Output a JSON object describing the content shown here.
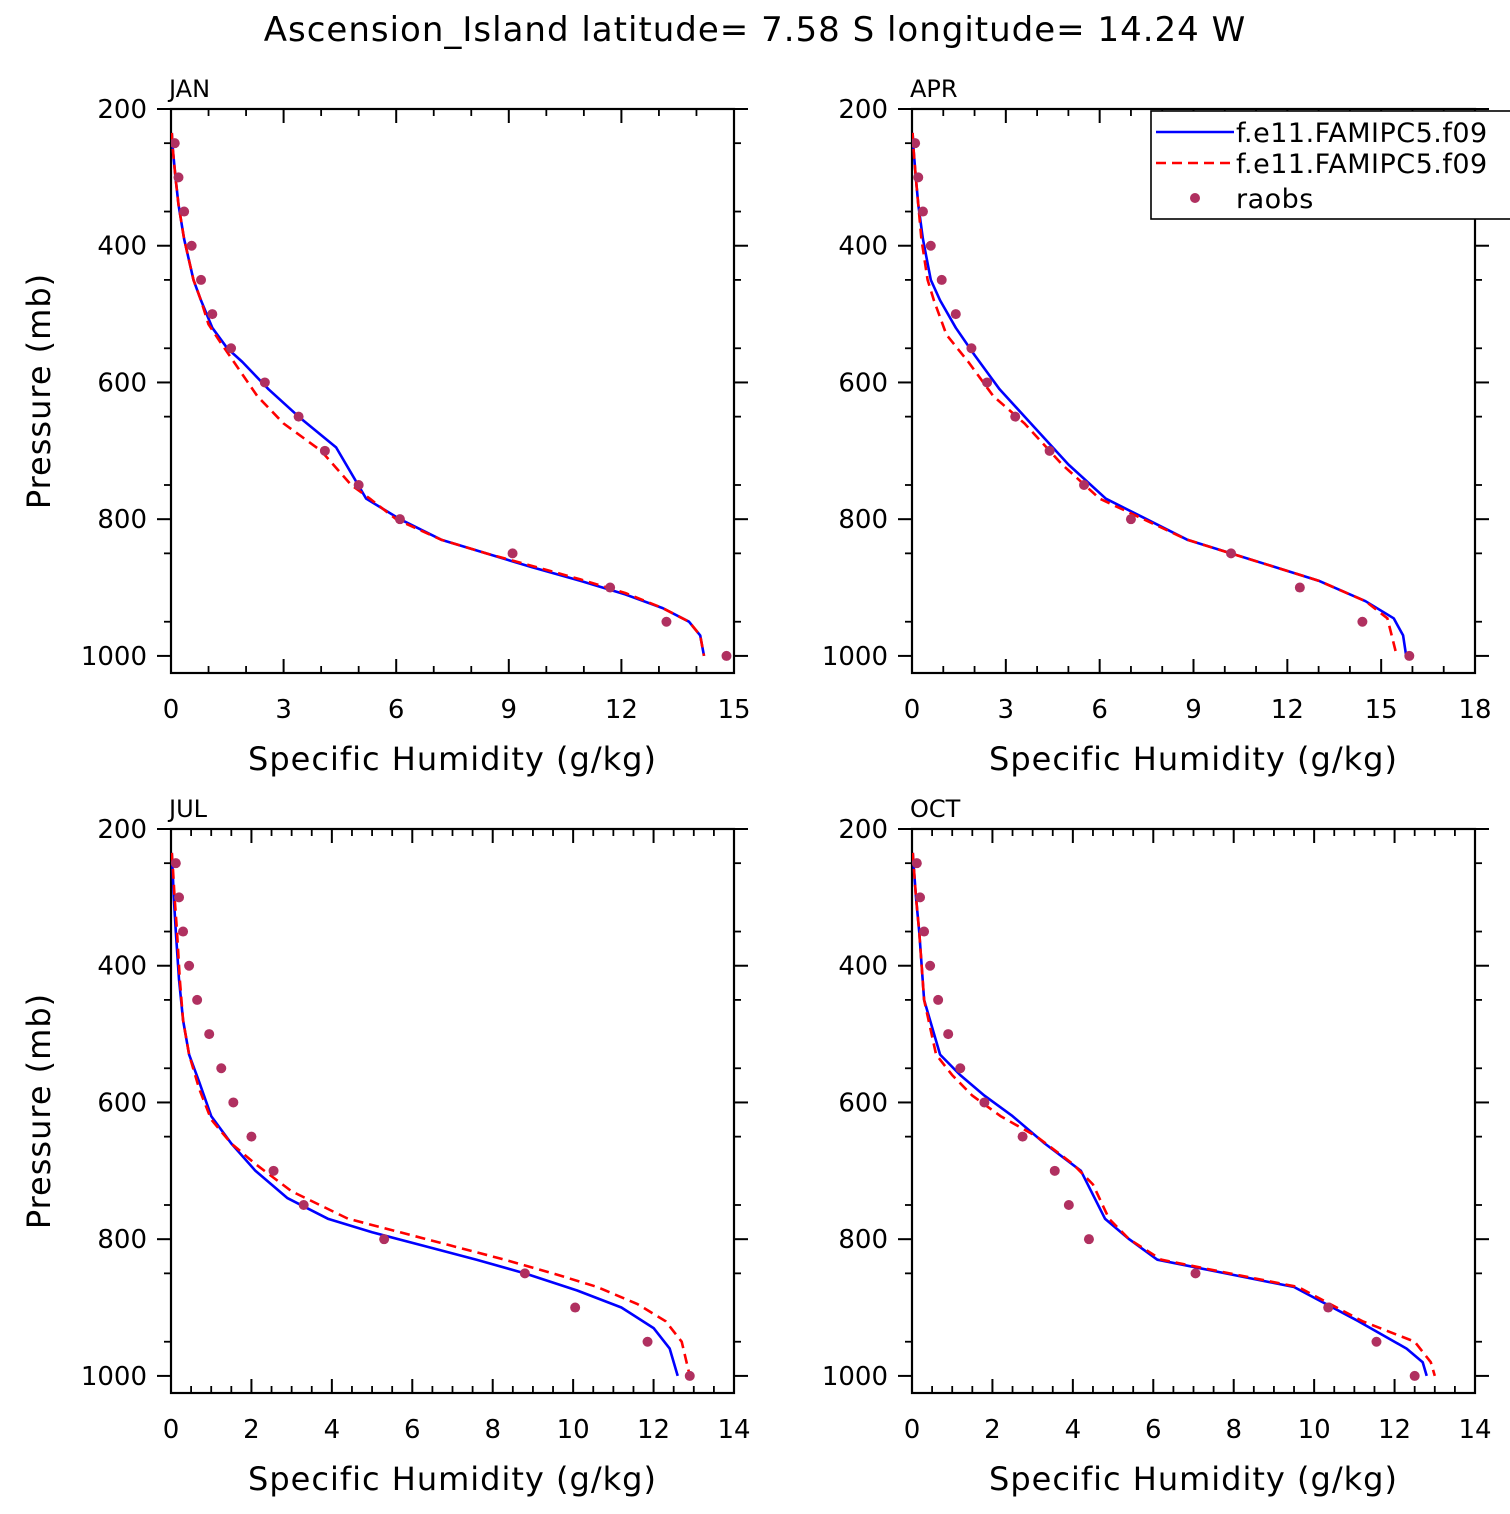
{
  "title": "Ascension_Island  latitude= 7.58 S longitude= 14.24 W",
  "legend": {
    "placement": "top-right of APR panel",
    "entries": [
      {
        "label": "f.e11.FAMIPC5.f09",
        "color": "#0000ff",
        "style": "solid"
      },
      {
        "label": "f.e11.FAMIPC5.f09",
        "color": "#ff0000",
        "style": "dashed"
      },
      {
        "label": "raobs",
        "color": "#b03060",
        "style": "dot"
      }
    ]
  },
  "chart_data": [
    {
      "type": "line",
      "month": "JAN",
      "xlabel": "Specific Humidity (g/kg)",
      "ylabel": "Pressure (mb)",
      "xlim": [
        0,
        15
      ],
      "xticks": [
        0,
        3,
        6,
        9,
        12,
        15
      ],
      "ylim": [
        1025,
        200
      ],
      "yticks": [
        200,
        400,
        600,
        800,
        1000
      ],
      "series": [
        {
          "color": "#0000ff",
          "style": "solid",
          "x": [
            0.02,
            0.05,
            0.12,
            0.2,
            0.35,
            0.6,
            0.8,
            1.1,
            1.5,
            1.9,
            2.6,
            3.4,
            4.4,
            5.2,
            6.1,
            7.2,
            8.4,
            9.6,
            10.9,
            12.1,
            13.1,
            13.8,
            14.1,
            14.2
          ],
          "y": [
            235,
            260,
            300,
            340,
            390,
            450,
            480,
            520,
            550,
            570,
            610,
            650,
            695,
            770,
            800,
            830,
            850,
            870,
            890,
            910,
            930,
            950,
            970,
            1000
          ]
        },
        {
          "color": "#ff0000",
          "style": "dashed",
          "x": [
            0.02,
            0.05,
            0.12,
            0.2,
            0.35,
            0.6,
            0.8,
            1.0,
            1.3,
            1.8,
            2.3,
            3.0,
            4.0,
            4.8,
            5.3,
            6.0,
            7.2,
            8.4,
            9.6,
            10.9,
            12.1,
            13.1,
            13.8,
            14.1,
            14.2
          ],
          "y": [
            235,
            260,
            300,
            340,
            390,
            450,
            480,
            515,
            540,
            580,
            620,
            660,
            700,
            750,
            770,
            800,
            830,
            850,
            868,
            888,
            908,
            930,
            950,
            970,
            1000
          ]
        },
        {
          "color": "#b03060",
          "style": "dot",
          "x": [
            0.1,
            0.2,
            0.35,
            0.55,
            0.8,
            1.1,
            1.6,
            2.5,
            3.4,
            4.1,
            5.0,
            6.1,
            9.1,
            11.7,
            13.2,
            14.8
          ],
          "y": [
            250,
            300,
            350,
            400,
            450,
            500,
            550,
            600,
            650,
            700,
            750,
            800,
            850,
            900,
            950,
            1000
          ]
        }
      ]
    },
    {
      "type": "line",
      "month": "APR",
      "xlabel": "Specific Humidity (g/kg)",
      "ylabel": "",
      "xlim": [
        0,
        18
      ],
      "xticks": [
        0,
        3,
        6,
        9,
        12,
        15,
        18
      ],
      "ylim": [
        1025,
        200
      ],
      "yticks": [
        200,
        400,
        600,
        800,
        1000
      ],
      "series": [
        {
          "color": "#0000ff",
          "style": "solid",
          "x": [
            0.02,
            0.05,
            0.12,
            0.2,
            0.35,
            0.6,
            0.9,
            1.4,
            2.0,
            2.8,
            3.8,
            5.0,
            6.2,
            7.5,
            8.8,
            10.2,
            11.6,
            13.0,
            14.5,
            15.4,
            15.7,
            15.8
          ],
          "y": [
            235,
            260,
            300,
            340,
            390,
            450,
            480,
            520,
            560,
            610,
            660,
            720,
            770,
            800,
            830,
            850,
            870,
            890,
            920,
            945,
            970,
            1000
          ]
        },
        {
          "color": "#ff0000",
          "style": "dashed",
          "x": [
            0.02,
            0.05,
            0.12,
            0.2,
            0.3,
            0.5,
            0.7,
            1.1,
            1.8,
            2.6,
            3.6,
            4.8,
            6.0,
            7.4,
            8.8,
            10.2,
            11.6,
            13.0,
            14.5,
            15.2,
            15.5
          ],
          "y": [
            235,
            260,
            300,
            340,
            390,
            450,
            480,
            530,
            570,
            620,
            660,
            720,
            770,
            800,
            830,
            850,
            870,
            890,
            920,
            945,
            1000
          ]
        },
        {
          "color": "#b03060",
          "style": "dot",
          "x": [
            0.1,
            0.2,
            0.35,
            0.6,
            0.95,
            1.4,
            1.9,
            2.4,
            3.3,
            4.4,
            5.5,
            7.0,
            10.2,
            12.4,
            14.4,
            15.9
          ],
          "y": [
            250,
            300,
            350,
            400,
            450,
            500,
            550,
            600,
            650,
            700,
            750,
            800,
            850,
            900,
            950,
            1000
          ]
        }
      ]
    },
    {
      "type": "line",
      "month": "JUL",
      "xlabel": "Specific Humidity (g/kg)",
      "ylabel": "Pressure (mb)",
      "xlim": [
        0,
        14
      ],
      "xticks": [
        0,
        2,
        4,
        6,
        8,
        10,
        12,
        14
      ],
      "ylim": [
        1025,
        200
      ],
      "yticks": [
        200,
        400,
        600,
        800,
        1000
      ],
      "series": [
        {
          "color": "#0000ff",
          "style": "solid",
          "x": [
            0.02,
            0.04,
            0.07,
            0.12,
            0.2,
            0.3,
            0.45,
            0.7,
            1.0,
            1.5,
            2.1,
            2.9,
            3.9,
            5.0,
            6.3,
            7.6,
            8.8,
            10.1,
            11.2,
            12.0,
            12.4,
            12.6
          ],
          "y": [
            235,
            260,
            300,
            350,
            420,
            480,
            530,
            570,
            620,
            660,
            700,
            740,
            770,
            790,
            810,
            830,
            850,
            875,
            900,
            930,
            960,
            1000
          ]
        },
        {
          "color": "#ff0000",
          "style": "dashed",
          "x": [
            0.02,
            0.05,
            0.09,
            0.15,
            0.22,
            0.3,
            0.45,
            0.7,
            1.0,
            1.5,
            2.1,
            3.0,
            4.4,
            5.7,
            7.0,
            8.3,
            9.5,
            10.6,
            11.6,
            12.3,
            12.7,
            12.9
          ],
          "y": [
            235,
            260,
            300,
            350,
            420,
            480,
            530,
            580,
            625,
            660,
            690,
            730,
            770,
            790,
            810,
            830,
            850,
            870,
            895,
            920,
            950,
            1000
          ]
        },
        {
          "color": "#b03060",
          "style": "dot",
          "x": [
            0.12,
            0.2,
            0.3,
            0.45,
            0.65,
            0.95,
            1.25,
            1.55,
            2.0,
            2.55,
            3.3,
            5.3,
            8.8,
            10.05,
            11.85,
            12.9
          ],
          "y": [
            250,
            300,
            350,
            400,
            450,
            500,
            550,
            600,
            650,
            700,
            750,
            800,
            850,
            900,
            950,
            1000
          ]
        }
      ]
    },
    {
      "type": "line",
      "month": "OCT",
      "xlabel": "Specific Humidity (g/kg)",
      "ylabel": "",
      "xlim": [
        0,
        14
      ],
      "xticks": [
        0,
        2,
        4,
        6,
        8,
        10,
        12,
        14
      ],
      "ylim": [
        1025,
        200
      ],
      "yticks": [
        200,
        400,
        600,
        800,
        1000
      ],
      "series": [
        {
          "color": "#0000ff",
          "style": "solid",
          "x": [
            0.02,
            0.05,
            0.1,
            0.18,
            0.3,
            0.7,
            1.2,
            1.8,
            2.5,
            3.3,
            4.2,
            4.8,
            5.4,
            6.1,
            7.8,
            9.5,
            11.1,
            12.3,
            12.7,
            12.8
          ],
          "y": [
            235,
            260,
            300,
            350,
            450,
            530,
            560,
            590,
            620,
            660,
            700,
            770,
            800,
            830,
            850,
            870,
            920,
            960,
            980,
            1000
          ]
        },
        {
          "color": "#ff0000",
          "style": "dashed",
          "x": [
            0.02,
            0.05,
            0.1,
            0.18,
            0.3,
            0.6,
            1.0,
            1.5,
            2.2,
            3.1,
            4.0,
            4.5,
            4.9,
            5.4,
            6.2,
            7.9,
            9.6,
            11.2,
            12.5,
            12.9,
            13.0
          ],
          "y": [
            235,
            260,
            300,
            350,
            450,
            530,
            560,
            590,
            620,
            650,
            690,
            720,
            770,
            800,
            830,
            850,
            870,
            920,
            950,
            980,
            1000
          ]
        },
        {
          "color": "#b03060",
          "style": "dot",
          "x": [
            0.12,
            0.2,
            0.3,
            0.45,
            0.65,
            0.9,
            1.2,
            1.8,
            2.75,
            3.55,
            3.9,
            4.4,
            7.05,
            10.35,
            11.55,
            12.5
          ],
          "y": [
            250,
            300,
            350,
            400,
            450,
            500,
            550,
            600,
            650,
            700,
            750,
            800,
            850,
            900,
            950,
            1000
          ]
        }
      ]
    }
  ]
}
